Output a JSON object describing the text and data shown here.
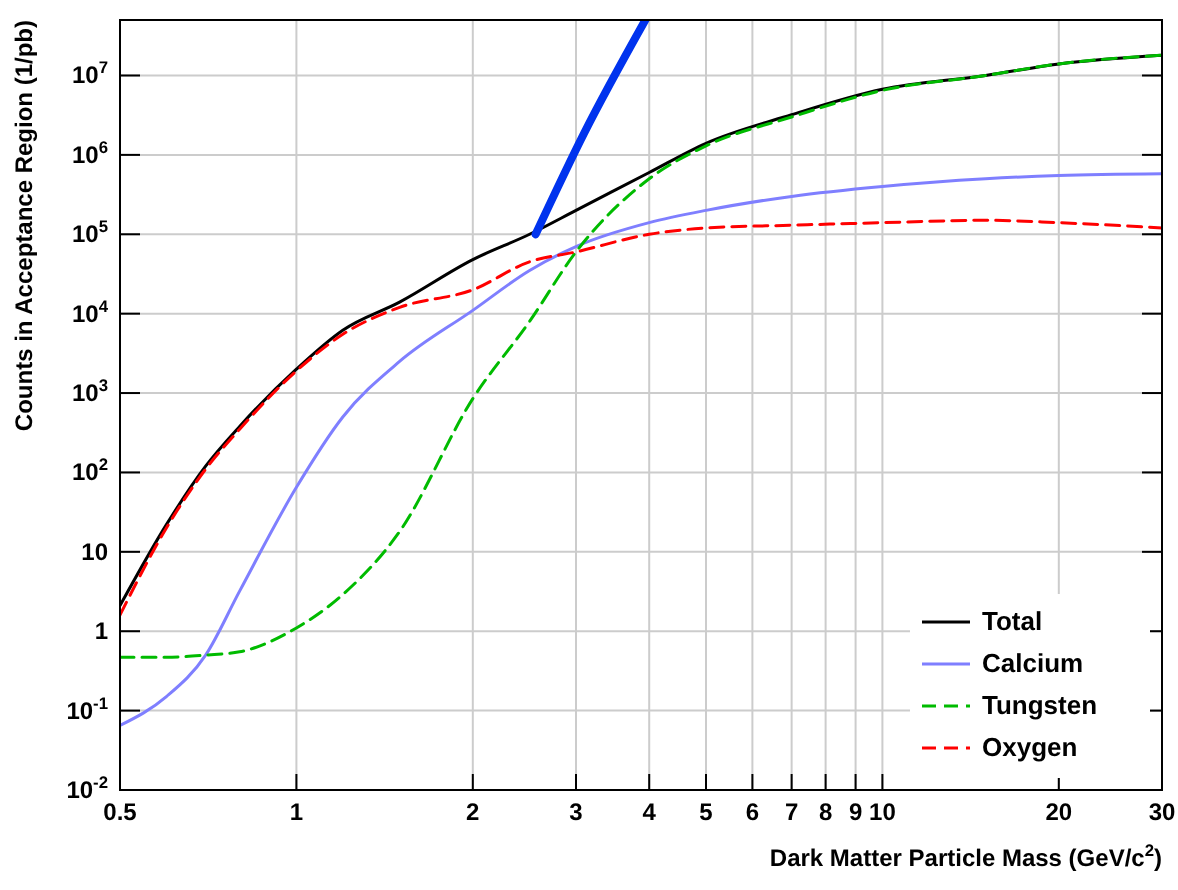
{
  "chart_data": {
    "type": "line",
    "xlabel": "Dark Matter Particle Mass (GeV/c$^{2}$)",
    "ylabel": "Counts in Acceptance Region (1/pb)",
    "log": "xy",
    "grid": true,
    "legend": "bottom right",
    "xlim": [
      0.5,
      30
    ],
    "xticks": [
      0.5,
      1,
      2,
      3,
      4,
      5,
      6,
      7,
      8,
      9,
      10,
      20,
      30
    ],
    "ylim": [
      0.01,
      50000000
    ],
    "yticks": [
      {
        "value": 0.01,
        "label": "10$^{-2}$"
      },
      {
        "value": 0.1,
        "label": "10$^{-1}$"
      },
      1,
      10,
      {
        "value": 100,
        "label": "10$^{2}$"
      },
      {
        "value": 1000,
        "label": "10$^{3}$"
      },
      {
        "value": 10000,
        "label": "10$^{4}$"
      },
      {
        "value": 100000,
        "label": "10$^{5}$"
      },
      {
        "value": 1000000,
        "label": "10$^{6}$"
      },
      {
        "value": 10000000,
        "label": "10$^{7}$"
      }
    ],
    "x": [
      0.5,
      0.6,
      0.7,
      0.8,
      1,
      1.2,
      1.5,
      2,
      2.5,
      3,
      4,
      5,
      7,
      10,
      15,
      20,
      30
    ],
    "series": [
      {
        "name": "Total",
        "color": "#000000",
        "line_style": "solid",
        "values": [
          2.1,
          22,
          120,
          380,
          2000,
          6200,
          14000,
          48000,
          100000,
          200000,
          600000,
          1400000,
          3200000,
          6700000,
          10000000,
          14000000,
          18000000
        ]
      },
      {
        "name": "Calcium",
        "color": "#7f7fff",
        "line_style": "solid",
        "values": [
          0.065,
          0.15,
          0.5,
          3.2,
          65,
          500,
          2500,
          11000,
          35000,
          70000,
          140000,
          200000,
          300000,
          400000,
          500000,
          550000,
          580000
        ]
      },
      {
        "name": "Tungsten",
        "color": "#00bb00",
        "line_style": "dashed",
        "values": [
          0.47,
          0.47,
          0.5,
          0.55,
          1.1,
          2.9,
          18,
          850,
          8000,
          60000,
          500000,
          1300000,
          3000000,
          6500000,
          10000000,
          14000000,
          18000000
        ]
      },
      {
        "name": "Oxygen",
        "color": "#ff0000",
        "line_style": "dashed",
        "values": [
          1.6,
          20,
          110,
          350,
          1900,
          5500,
          12000,
          20000,
          45000,
          60000,
          100000,
          120000,
          130000,
          140000,
          150000,
          140000,
          120000
        ]
      },
      {
        "color": "#0033ee",
        "line_style": "solid",
        "x": [
          2.56,
          3.1,
          3.94
        ],
        "values": [
          100000,
          1900000,
          50000000
        ]
      }
    ]
  }
}
